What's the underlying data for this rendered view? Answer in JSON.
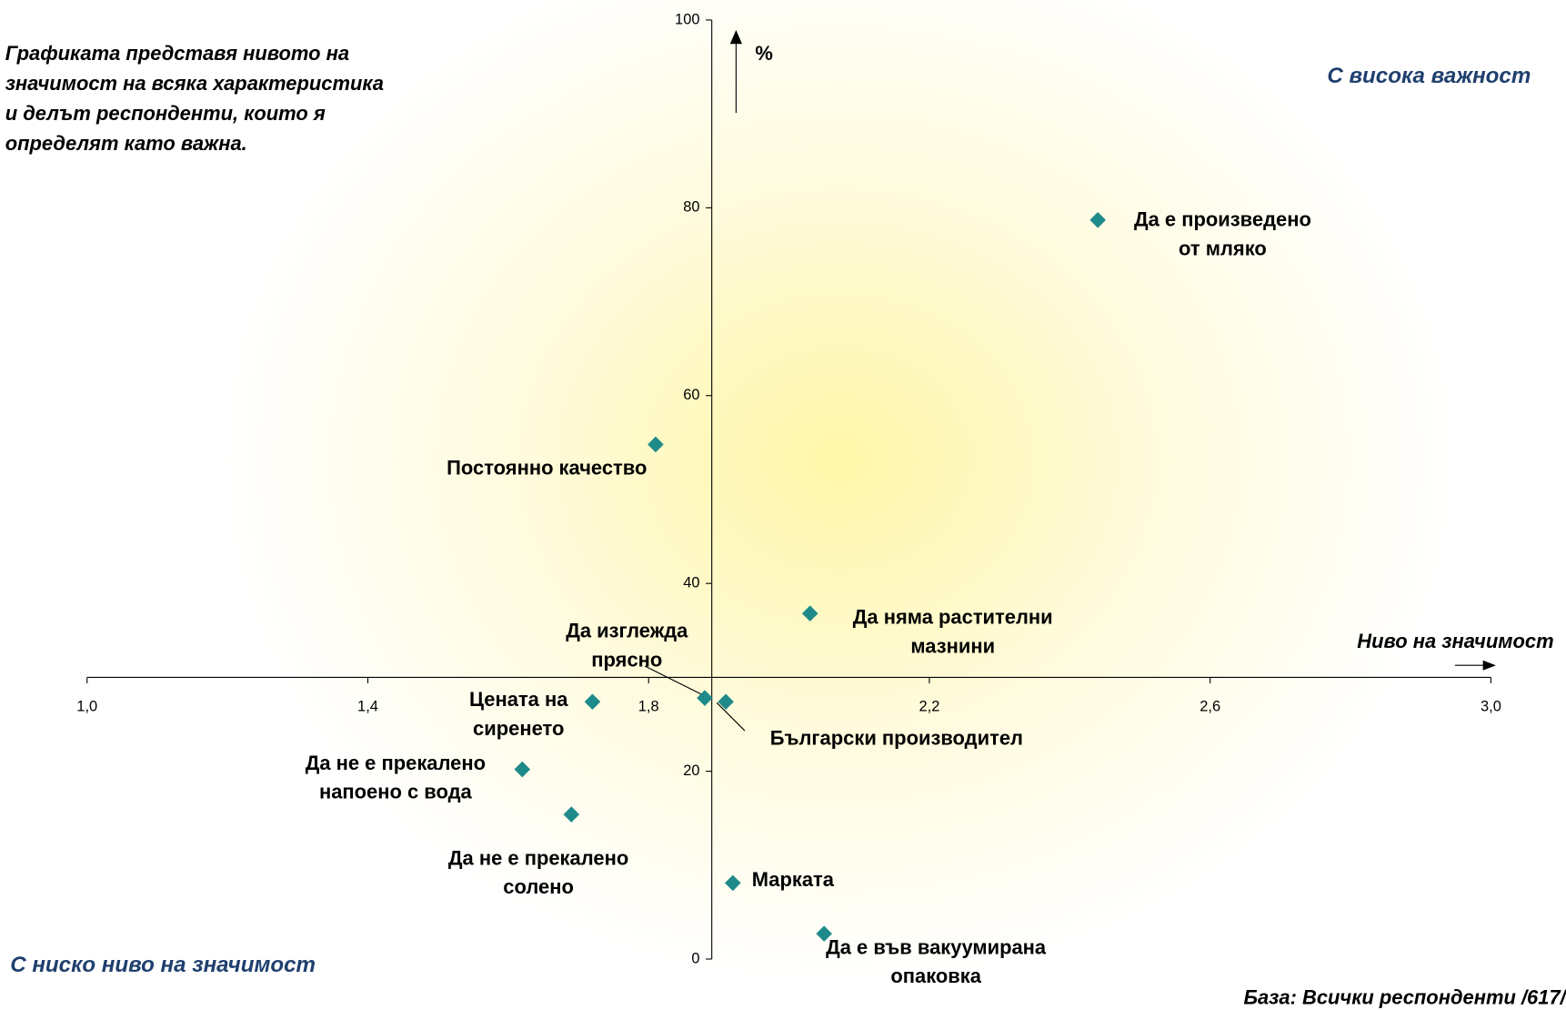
{
  "chart_data": {
    "type": "scatter",
    "note": [
      "Графиката представя нивото на",
      "значимост на всяка характеристика",
      "и делът респонденти, които я",
      "определят като важна."
    ],
    "top_right_label": "С висока важност",
    "bottom_left_label": "С ниско ниво на значимост",
    "x_label": "Ниво на значимост",
    "y_label": "%",
    "base_note": "База: Всички респонденти /617/",
    "xlim": [
      1.0,
      3.0
    ],
    "xticks": [
      {
        "value": 1.0,
        "label": "1,0"
      },
      {
        "value": 1.4,
        "label": "1,4"
      },
      {
        "value": 1.8,
        "label": "1,8"
      },
      {
        "value": 2.2,
        "label": "2,2"
      },
      {
        "value": 2.6,
        "label": "2,6"
      },
      {
        "value": 3.0,
        "label": "3,0"
      }
    ],
    "ylim": [
      0,
      100
    ],
    "yticks": [
      0,
      20,
      40,
      60,
      80,
      100
    ],
    "x_axis_crosses_y": 30,
    "y_axis_crosses_x": 1.89,
    "color": "#1f8a8a",
    "series": [
      {
        "name": null,
        "x": [
          2.44,
          1.81,
          2.03,
          1.88,
          1.91,
          1.72,
          1.62,
          1.69,
          1.92,
          2.05
        ],
        "values": [
          78.7,
          54.8,
          36.8,
          27.8,
          27.4,
          27.4,
          20.2,
          15.4,
          8.1,
          2.7
        ]
      }
    ],
    "point_labels": [
      [
        "Да е произведено",
        "от мляко"
      ],
      [
        "Постоянно качество"
      ],
      [
        "Да няма растителни",
        "мазнини"
      ],
      [
        "Да изглежда",
        "прясно"
      ],
      [
        "Български производител"
      ],
      [
        "Цената на",
        "сиренето"
      ],
      [
        "Да не е прекалено",
        "напоено с вода"
      ],
      [
        "Да не е прекалено",
        "солено"
      ],
      [
        "Марката"
      ],
      [
        "Да е във вакуумирана",
        "опаковка"
      ]
    ]
  }
}
